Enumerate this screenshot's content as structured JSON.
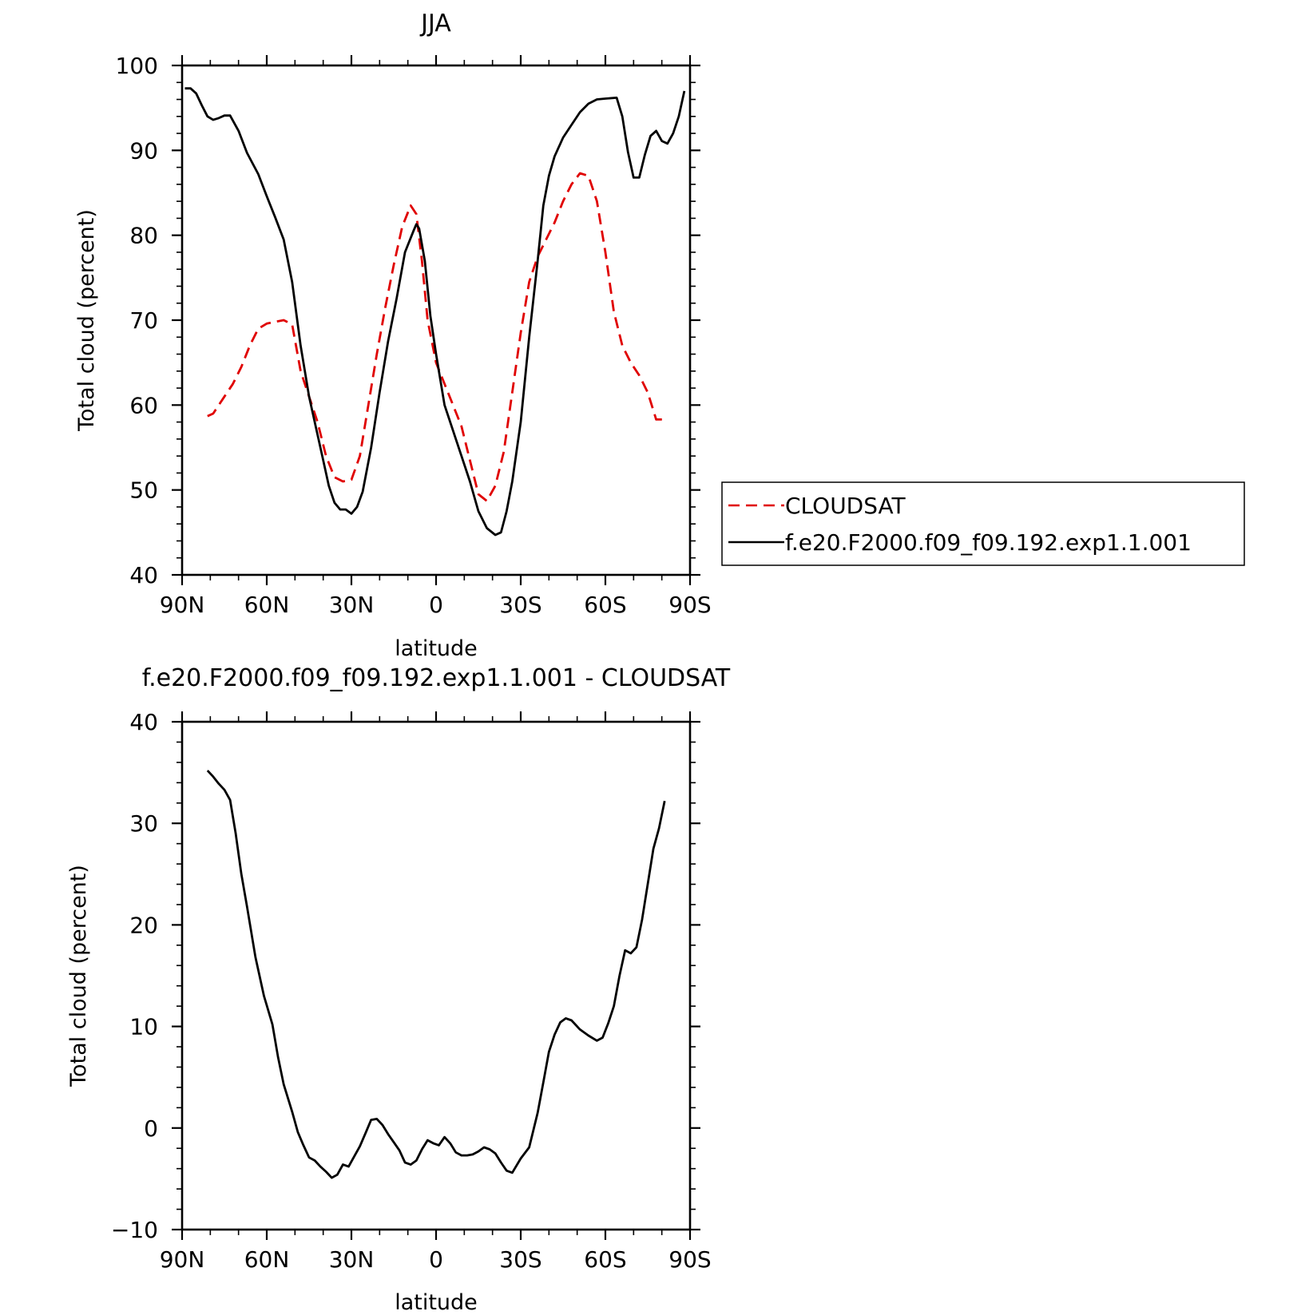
{
  "chart_data": [
    {
      "type": "line",
      "title": "JJA",
      "xlabel": "latitude",
      "ylabel": "Total cloud (percent)",
      "xlim": [
        90,
        -90
      ],
      "ylim": [
        40,
        100
      ],
      "xticks": [
        90,
        60,
        30,
        0,
        -30,
        -60,
        -90
      ],
      "xtick_labels": [
        "90N",
        "60N",
        "30N",
        "0",
        "30S",
        "60S",
        "90S"
      ],
      "yticks": [
        40,
        50,
        60,
        70,
        80,
        90,
        100
      ],
      "ytick_labels": [
        "40",
        "50",
        "60",
        "70",
        "80",
        "90",
        "100"
      ],
      "legend": "right",
      "series": [
        {
          "name": "CLOUDSAT",
          "color": "#e00000",
          "dash": true,
          "x": [
            81,
            79,
            75,
            72,
            69,
            66,
            63,
            60,
            57,
            54,
            51,
            48,
            45,
            42,
            39,
            36,
            33,
            30,
            27,
            24,
            21,
            18,
            15,
            12,
            9,
            7,
            5,
            3,
            0,
            -3,
            -6,
            -9,
            -12,
            -15,
            -18,
            -21,
            -24,
            -27,
            -30,
            -33,
            -36,
            -39,
            -42,
            -45,
            -48,
            -51,
            -54,
            -57,
            -60,
            -63,
            -66,
            -69,
            -72,
            -75,
            -78,
            -81
          ],
          "y": [
            58.7,
            59,
            61,
            62.5,
            64.5,
            67,
            69,
            69.6,
            69.8,
            70,
            69.5,
            64,
            61,
            58,
            54,
            51.5,
            51,
            51.2,
            54,
            60,
            66,
            71.5,
            76.5,
            81,
            83.5,
            82.5,
            77,
            70,
            65,
            62.5,
            60,
            57.5,
            53.5,
            49.5,
            48.7,
            50.5,
            54.5,
            61.5,
            68.5,
            74.5,
            77.5,
            79.5,
            81.5,
            84,
            86,
            87.3,
            87,
            84,
            78,
            71,
            67,
            65,
            63.5,
            61.5,
            58.3,
            58.3
          ]
        },
        {
          "name": "f.e20.F2000.f09_f09.192.exp1.1.001",
          "color": "#000000",
          "dash": false,
          "x": [
            89,
            87,
            85,
            83,
            81,
            79,
            77,
            75,
            73,
            70,
            67,
            63,
            60,
            57,
            54,
            51,
            48,
            45,
            42,
            40,
            38,
            36,
            34,
            32,
            30,
            28,
            26,
            23,
            20,
            17,
            14,
            11,
            8,
            7,
            6,
            4,
            2,
            0,
            -3,
            -6,
            -9,
            -12,
            -15,
            -18,
            -21,
            -23,
            -25,
            -27,
            -30,
            -33,
            -36,
            -38,
            -40,
            -42,
            -45,
            -48,
            -51,
            -54,
            -57,
            -60,
            -64,
            -66,
            -68,
            -70,
            -72,
            -74,
            -76,
            -78,
            -80,
            -82,
            -84,
            -86,
            -88
          ],
          "y": [
            97.3,
            97.3,
            96.7,
            95.3,
            94,
            93.6,
            93.8,
            94.1,
            94.1,
            92.3,
            89.7,
            87.2,
            84.6,
            82.1,
            79.5,
            74.5,
            67,
            61,
            56.5,
            53.5,
            50.5,
            48.5,
            47.7,
            47.7,
            47.2,
            48,
            49.8,
            55,
            61.5,
            67.5,
            72.5,
            78,
            80.5,
            81.3,
            80.8,
            77,
            70.5,
            66,
            60,
            57,
            54,
            51,
            47.5,
            45.5,
            44.7,
            45,
            47.5,
            51,
            58,
            68,
            77,
            83.5,
            87,
            89.3,
            91.5,
            93,
            94.5,
            95.5,
            96,
            96.1,
            96.2,
            94,
            89.8,
            86.8,
            86.8,
            89.5,
            91.7,
            92.3,
            91.1,
            90.8,
            92,
            94,
            97
          ]
        }
      ]
    },
    {
      "type": "line",
      "title": "f.e20.F2000.f09_f09.192.exp1.1.001 - CLOUDSAT",
      "xlabel": "latitude",
      "ylabel": "Total cloud (percent)",
      "xlim": [
        90,
        -90
      ],
      "ylim": [
        -10,
        40
      ],
      "xticks": [
        90,
        60,
        30,
        0,
        -30,
        -60,
        -90
      ],
      "xtick_labels": [
        "90N",
        "60N",
        "30N",
        "0",
        "30S",
        "60S",
        "90S"
      ],
      "yticks": [
        -10,
        0,
        10,
        20,
        30,
        40
      ],
      "ytick_labels": [
        "−10",
        "0",
        "10",
        "20",
        "30",
        "40"
      ],
      "series": [
        {
          "color": "#000000",
          "dash": false,
          "x": [
            81,
            79,
            77,
            75,
            73,
            71,
            69,
            67,
            64,
            61,
            58,
            56,
            54,
            51,
            49,
            47,
            45,
            43,
            41,
            39,
            37,
            35,
            33,
            31,
            29,
            27,
            25,
            23,
            21,
            19,
            17,
            15,
            13,
            11,
            9,
            7,
            5,
            3,
            1,
            -1,
            -3,
            -5,
            -7,
            -9,
            -11,
            -13,
            -15,
            -17,
            -19,
            -21,
            -23,
            -25,
            -27,
            -30,
            -33,
            -36,
            -38,
            -40,
            -42,
            -44,
            -46,
            -48,
            -51,
            -54,
            -57,
            -59,
            -61,
            -63,
            -65,
            -67,
            -69,
            -71,
            -73,
            -75,
            -77,
            -79,
            -81
          ],
          "y": [
            35.2,
            34.6,
            33.9,
            33.3,
            32.3,
            29,
            25,
            21.8,
            16.8,
            13,
            10.2,
            7,
            4.3,
            1.6,
            -0.4,
            -1.7,
            -2.9,
            -3.2,
            -3.8,
            -4.3,
            -4.9,
            -4.6,
            -3.6,
            -3.8,
            -2.8,
            -1.8,
            -0.5,
            0.8,
            0.9,
            0.3,
            -0.6,
            -1.4,
            -2.2,
            -3.4,
            -3.6,
            -3.2,
            -2.1,
            -1.2,
            -1.5,
            -1.7,
            -0.9,
            -1.5,
            -2.4,
            -2.7,
            -2.7,
            -2.6,
            -2.3,
            -1.9,
            -2.1,
            -2.5,
            -3.4,
            -4.2,
            -4.4,
            -3,
            -1.9,
            1.5,
            4.5,
            7.5,
            9.2,
            10.4,
            10.8,
            10.6,
            9.7,
            9.1,
            8.6,
            8.9,
            10.3,
            12,
            15,
            17.5,
            17.2,
            17.8,
            20.5,
            24,
            27.5,
            29.5,
            32.2
          ]
        }
      ]
    }
  ]
}
